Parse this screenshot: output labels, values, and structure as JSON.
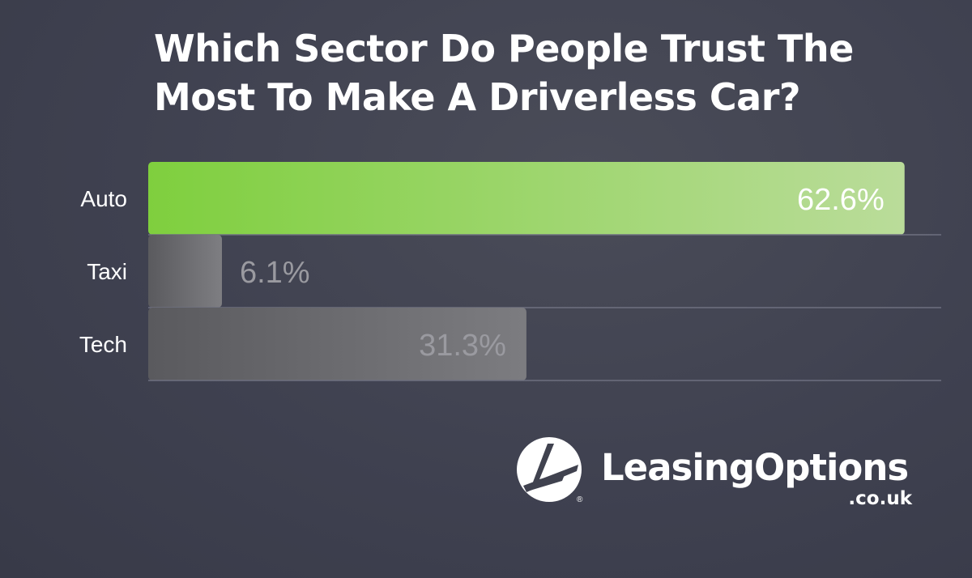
{
  "chart_data": {
    "type": "bar",
    "orientation": "horizontal",
    "title": "Which Sector Do People Trust The Most To Make A Driverless Car?",
    "categories": [
      "Auto",
      "Taxi",
      "Tech"
    ],
    "values": [
      62.6,
      6.1,
      31.3
    ],
    "value_labels": [
      "62.6%",
      "6.1%",
      "31.3%"
    ],
    "unit": "%",
    "xlim": [
      0,
      65.5
    ],
    "grid": false,
    "colors": {
      "Auto": [
        "#7fcf3e",
        "#badc9a"
      ],
      "Taxi": [
        "#5a5a5e",
        "#7e7e82"
      ],
      "Tech": [
        "#5a5a5e",
        "#7c7c80"
      ],
      "label_on_highlight": "#ffffff",
      "label_muted": "#9a9aa0",
      "category_text": "#ffffff",
      "separator": "#6e7080"
    }
  },
  "logo": {
    "name": "LeasingOptions",
    "domain": ".co.uk",
    "reg": "®",
    "icon": "leasing-options-logo-icon"
  }
}
